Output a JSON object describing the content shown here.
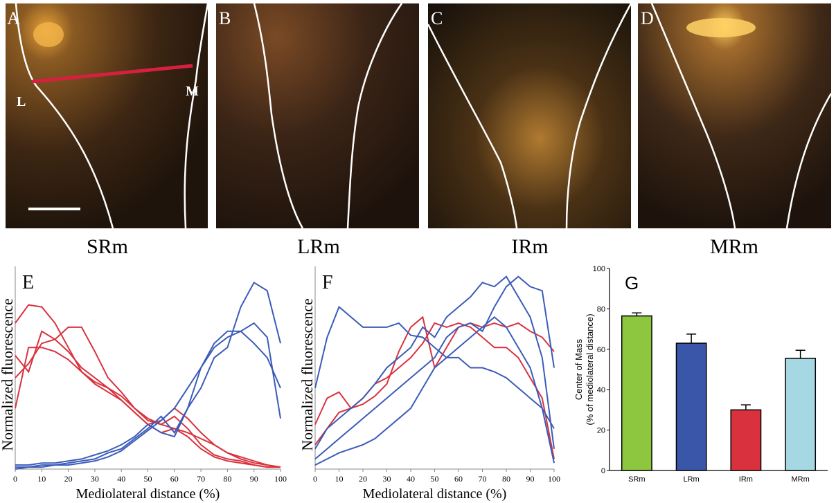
{
  "images": [
    {
      "letter": "A",
      "caption": "SRm",
      "markers": [
        "L",
        "M"
      ]
    },
    {
      "letter": "B",
      "caption": "LRm"
    },
    {
      "letter": "C",
      "caption": "IRm"
    },
    {
      "letter": "D",
      "caption": "MRm"
    }
  ],
  "chart_data": [
    {
      "type": "line",
      "panel_label": "E",
      "xlabel": "Mediolateral distance (%)",
      "ylabel": "Normalized fluorescence",
      "xlim": [
        0,
        100
      ],
      "xticks": [
        0,
        10,
        20,
        30,
        40,
        50,
        60,
        70,
        80,
        90,
        100
      ],
      "ylim": [
        0,
        1
      ],
      "x": [
        0,
        5,
        10,
        15,
        20,
        25,
        30,
        35,
        40,
        45,
        50,
        55,
        60,
        65,
        70,
        75,
        80,
        85,
        90,
        95,
        100
      ],
      "series": [
        {
          "color": "#d9323e",
          "values": [
            0.72,
            0.81,
            0.8,
            0.72,
            0.6,
            0.48,
            0.42,
            0.38,
            0.34,
            0.28,
            0.22,
            0.18,
            0.2,
            0.16,
            0.1,
            0.06,
            0.04,
            0.03,
            0.02,
            0.01,
            0.01
          ]
        },
        {
          "color": "#d9323e",
          "values": [
            0.45,
            0.52,
            0.62,
            0.64,
            0.7,
            0.7,
            0.58,
            0.45,
            0.38,
            0.3,
            0.24,
            0.22,
            0.26,
            0.2,
            0.12,
            0.07,
            0.05,
            0.04,
            0.02,
            0.01,
            0.01
          ]
        },
        {
          "color": "#d9323e",
          "values": [
            0.56,
            0.48,
            0.68,
            0.64,
            0.58,
            0.5,
            0.45,
            0.4,
            0.34,
            0.28,
            0.22,
            0.24,
            0.3,
            0.25,
            0.18,
            0.12,
            0.08,
            0.05,
            0.03,
            0.02,
            0.01
          ]
        },
        {
          "color": "#d9323e",
          "values": [
            0.3,
            0.6,
            0.6,
            0.58,
            0.54,
            0.48,
            0.43,
            0.4,
            0.36,
            0.3,
            0.25,
            0.22,
            0.2,
            0.18,
            0.15,
            0.12,
            0.08,
            0.06,
            0.04,
            0.02,
            0.01
          ]
        },
        {
          "color": "#3a5bb8",
          "values": [
            0.01,
            0.01,
            0.02,
            0.02,
            0.03,
            0.04,
            0.05,
            0.08,
            0.1,
            0.15,
            0.2,
            0.26,
            0.18,
            0.3,
            0.4,
            0.55,
            0.6,
            0.8,
            0.92,
            0.88,
            0.62
          ]
        },
        {
          "color": "#3a5bb8",
          "values": [
            0.0,
            0.01,
            0.01,
            0.02,
            0.02,
            0.03,
            0.04,
            0.06,
            0.09,
            0.14,
            0.19,
            0.24,
            0.3,
            0.4,
            0.5,
            0.62,
            0.68,
            0.68,
            0.62,
            0.55,
            0.4
          ]
        },
        {
          "color": "#3a5bb8",
          "values": [
            0.02,
            0.02,
            0.03,
            0.03,
            0.04,
            0.05,
            0.07,
            0.09,
            0.12,
            0.16,
            0.22,
            0.18,
            0.16,
            0.3,
            0.5,
            0.6,
            0.65,
            0.68,
            0.72,
            0.65,
            0.25
          ]
        }
      ]
    },
    {
      "type": "line",
      "panel_label": "F",
      "xlabel": "Mediolateral distance (%)",
      "ylabel": "Normalized fluorescence",
      "xlim": [
        0,
        100
      ],
      "xticks": [
        0,
        10,
        20,
        30,
        40,
        50,
        60,
        70,
        80,
        90,
        100
      ],
      "ylim": [
        0,
        1
      ],
      "x": [
        0,
        5,
        10,
        15,
        20,
        25,
        30,
        35,
        40,
        45,
        50,
        55,
        60,
        65,
        70,
        75,
        80,
        85,
        90,
        95,
        100
      ],
      "series": [
        {
          "color": "#d9323e",
          "values": [
            0.22,
            0.35,
            0.38,
            0.3,
            0.35,
            0.42,
            0.45,
            0.5,
            0.55,
            0.62,
            0.72,
            0.7,
            0.72,
            0.7,
            0.65,
            0.6,
            0.6,
            0.55,
            0.45,
            0.35,
            0.05
          ]
        },
        {
          "color": "#d9323e",
          "values": [
            0.12,
            0.2,
            0.28,
            0.3,
            0.32,
            0.36,
            0.42,
            0.58,
            0.7,
            0.75,
            0.5,
            0.6,
            0.7,
            0.72,
            0.7,
            0.72,
            0.7,
            0.72,
            0.68,
            0.65,
            0.58
          ]
        },
        {
          "color": "#3a5bb8",
          "values": [
            0.4,
            0.65,
            0.8,
            0.75,
            0.7,
            0.7,
            0.7,
            0.72,
            0.66,
            0.65,
            0.6,
            0.55,
            0.55,
            0.5,
            0.5,
            0.48,
            0.45,
            0.4,
            0.35,
            0.3,
            0.2
          ]
        },
        {
          "color": "#3a5bb8",
          "values": [
            0.1,
            0.2,
            0.25,
            0.3,
            0.35,
            0.42,
            0.5,
            0.55,
            0.6,
            0.7,
            0.65,
            0.75,
            0.8,
            0.85,
            0.92,
            0.9,
            0.95,
            0.85,
            0.75,
            0.55,
            0.1
          ]
        },
        {
          "color": "#3a5bb8",
          "values": [
            0.05,
            0.1,
            0.15,
            0.2,
            0.25,
            0.3,
            0.35,
            0.4,
            0.45,
            0.5,
            0.55,
            0.65,
            0.7,
            0.72,
            0.68,
            0.8,
            0.9,
            0.95,
            0.9,
            0.88,
            0.5
          ]
        },
        {
          "color": "#3a5bb8",
          "values": [
            0.02,
            0.05,
            0.08,
            0.1,
            0.12,
            0.15,
            0.2,
            0.25,
            0.3,
            0.4,
            0.5,
            0.55,
            0.6,
            0.65,
            0.7,
            0.75,
            0.7,
            0.6,
            0.5,
            0.3,
            0.03
          ]
        }
      ]
    },
    {
      "type": "bar",
      "panel_label": "G",
      "ylabel": [
        "Center of Mass",
        "(% of mediolateral distance)"
      ],
      "categories": [
        "SRm",
        "LRm",
        "IRm",
        "MRm"
      ],
      "values": [
        76.5,
        63,
        30,
        55.5
      ],
      "errors": [
        1.5,
        4.5,
        2.5,
        4
      ],
      "colors": [
        "#8dc63f",
        "#3a56a8",
        "#d9323e",
        "#a6d8e3"
      ],
      "ylim": [
        0,
        100
      ],
      "yticks": [
        0,
        20,
        40,
        60,
        80,
        100
      ]
    }
  ]
}
